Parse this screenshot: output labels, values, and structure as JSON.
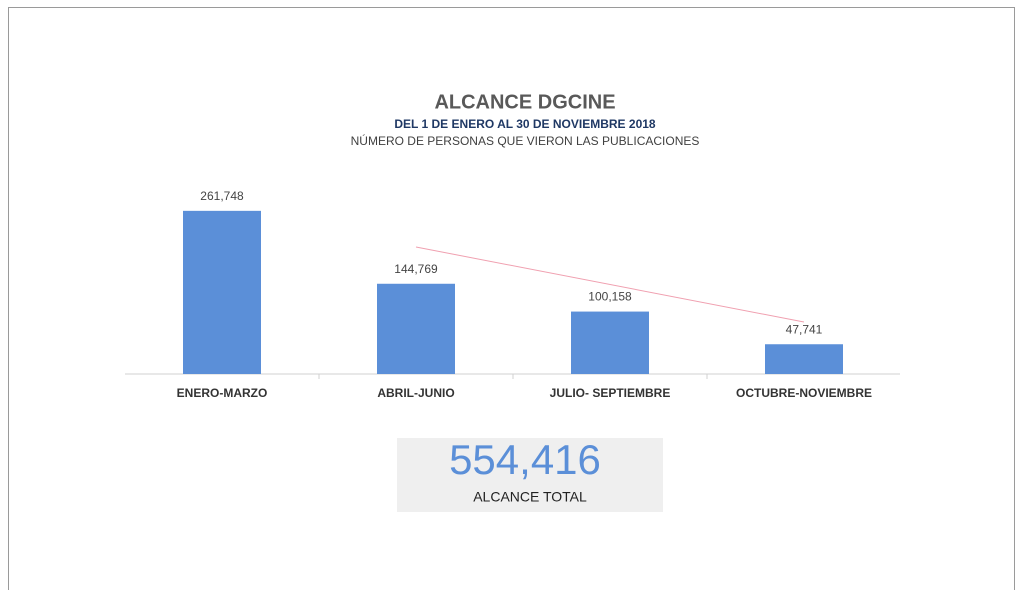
{
  "chart_data": {
    "type": "bar",
    "title": "ALCANCE DGCINE",
    "subtitle": "DEL 1 DE ENERO AL 30 DE NOVIEMBRE 2018",
    "subtitle2": "NÚMERO DE PERSONAS QUE VIERON LAS PUBLICACIONES",
    "categories": [
      "ENERO-MARZO",
      "ABRIL-JUNIO",
      "JULIO- SEPTIEMBRE",
      "OCTUBRE-NOVIEMBRE"
    ],
    "values": [
      261748,
      144769,
      100158,
      47741
    ],
    "value_labels": [
      "261,748",
      "144,769",
      "100,158",
      "47,741"
    ],
    "color": "#5b8fd8",
    "ylim": [
      0,
      300000
    ]
  },
  "summary": {
    "total": "554,416",
    "caption": "ALCANCE TOTAL"
  }
}
